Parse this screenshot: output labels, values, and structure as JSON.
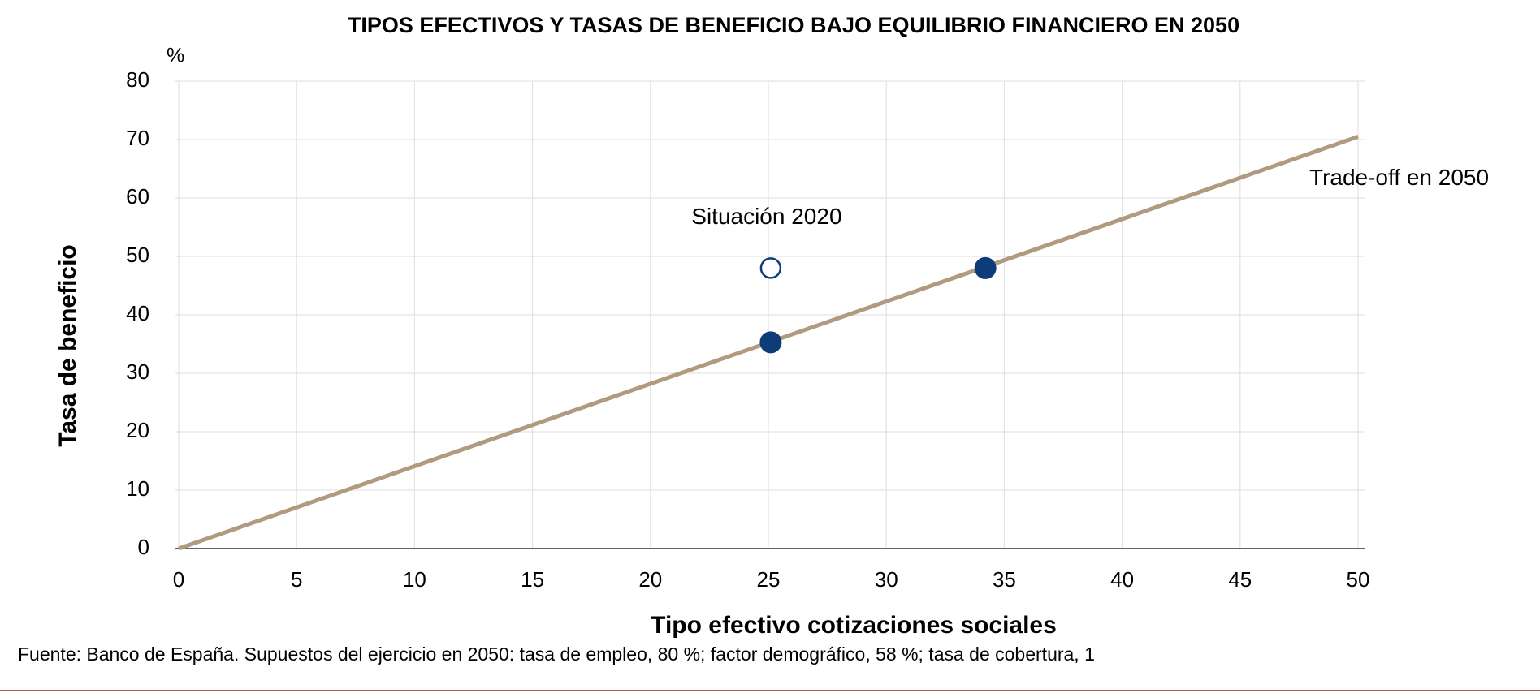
{
  "chart_data": {
    "type": "scatter",
    "title": "TIPOS EFECTIVOS Y TASAS DE BENEFICIO BAJO EQUILIBRIO FINANCIERO EN 2050",
    "y_unit": "%",
    "x_label": "Tipo efectivo cotizaciones sociales",
    "y_label": "Tasa de beneficio",
    "source": "Fuente: Banco de España. Supuestos del ejercicio en 2050: tasa de empleo, 80 %; factor demográfico, 58 %; tasa de cobertura, 1",
    "xlim": [
      0,
      50
    ],
    "xticks": [
      0,
      5,
      10,
      15,
      20,
      25,
      30,
      35,
      40,
      45,
      50
    ],
    "ylim": [
      0,
      80
    ],
    "yticks": [
      0,
      10,
      20,
      30,
      40,
      50,
      60,
      70,
      80
    ],
    "grid": true,
    "series": [
      {
        "name": "Trade-off en 2050",
        "type": "line",
        "color": "#b09a80",
        "x": [
          0,
          50
        ],
        "values": [
          0,
          70.5
        ]
      },
      {
        "name": "Situación 2020",
        "type": "scatter",
        "marker": "open",
        "color": "#0d3c78",
        "x": [
          25.1
        ],
        "values": [
          48
        ]
      },
      {
        "type": "scatter",
        "marker": "filled",
        "color": "#0d3c78",
        "x": [
          25.1,
          34.2
        ],
        "values": [
          35.3,
          48
        ]
      }
    ]
  }
}
